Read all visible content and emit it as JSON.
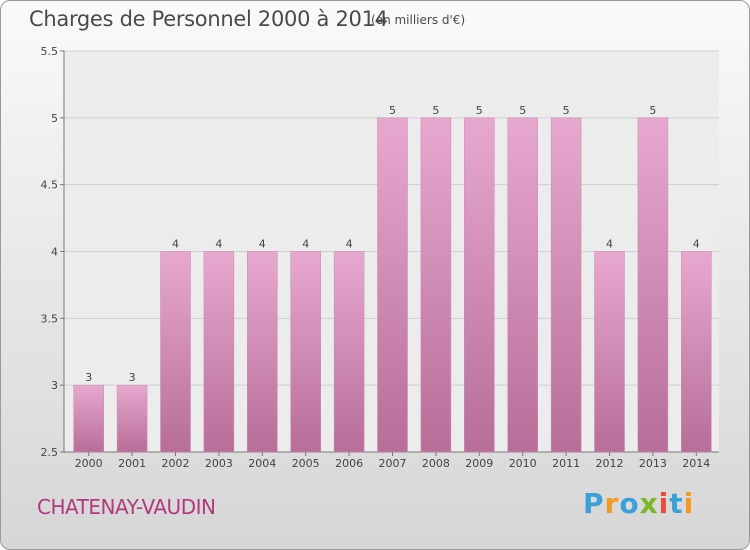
{
  "chart_data": {
    "type": "bar",
    "title": "Charges de Personnel 2000 à 2014",
    "subtitle": "(en milliers d'€)",
    "categories": [
      "2000",
      "2001",
      "2002",
      "2003",
      "2004",
      "2005",
      "2006",
      "2007",
      "2008",
      "2009",
      "2010",
      "2011",
      "2012",
      "2013",
      "2014"
    ],
    "values": [
      3,
      3,
      4,
      4,
      4,
      4,
      4,
      5,
      5,
      5,
      5,
      5,
      4,
      5,
      4
    ],
    "ylim": [
      2.5,
      5.5
    ],
    "yticks": [
      "2.5",
      "3",
      "3.5",
      "4",
      "4.5",
      "5",
      "5.5"
    ],
    "grid": true,
    "bar_color": "#d98ab8"
  },
  "footer": {
    "place": "CHATENAY-VAUDIN",
    "logo": [
      "P",
      "r",
      "o",
      "x",
      "i",
      "t",
      "i"
    ],
    "logo_colors": [
      "#3aa0d8",
      "#f29a1f",
      "#3aa0d8",
      "#7ab829",
      "#e84b3c",
      "#3aa0d8",
      "#f29a1f"
    ]
  }
}
